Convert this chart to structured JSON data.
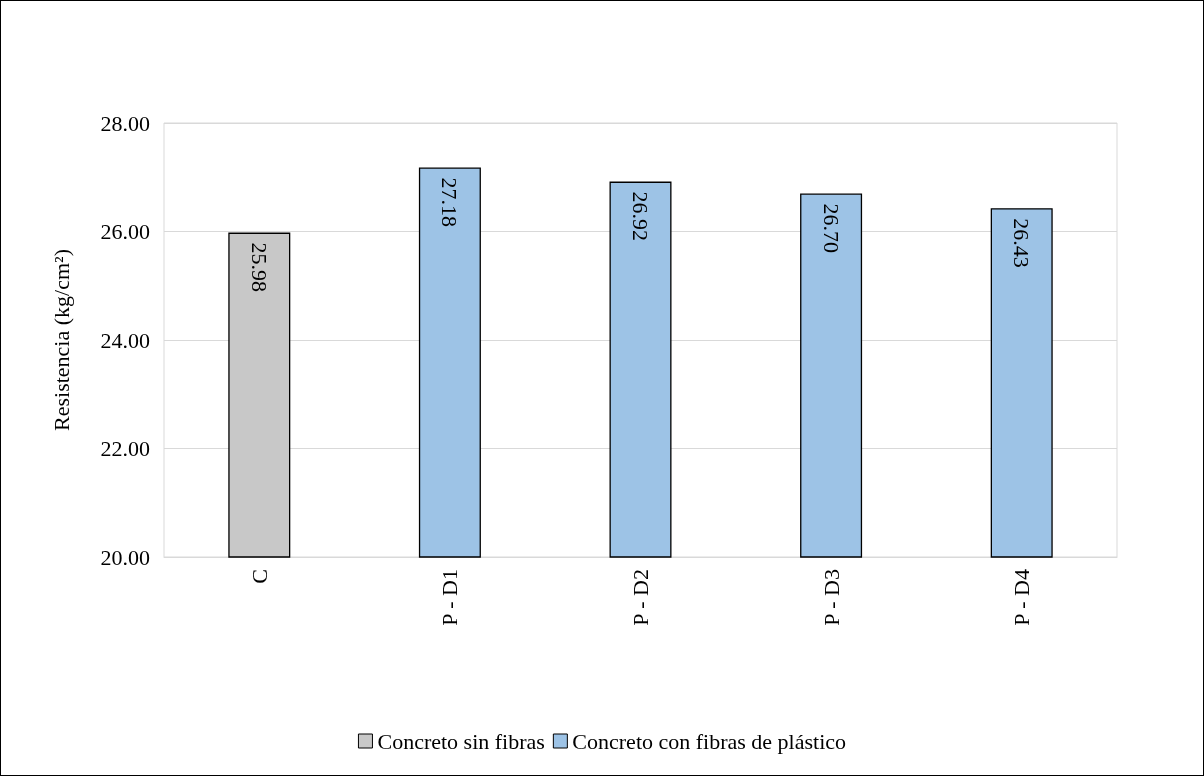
{
  "chart_data": {
    "type": "bar",
    "ylabel": "Resistencia (kg/cm²)",
    "categories": [
      "C",
      "P - D1",
      "P - D2",
      "P - D3",
      "P - D4"
    ],
    "series": [
      {
        "name": "Concreto sin fibras",
        "color": "#c8c8c8",
        "values": [
          25.98,
          null,
          null,
          null,
          null
        ],
        "value_labels": [
          "25.98",
          null,
          null,
          null,
          null
        ]
      },
      {
        "name": "Concreto con fibras de plástico",
        "color": "#9dc3e6",
        "values": [
          null,
          27.18,
          26.92,
          26.7,
          26.43
        ],
        "value_labels": [
          null,
          "27.18",
          "26.92",
          "26.70",
          "26.43"
        ]
      }
    ],
    "ylim": [
      20,
      28
    ],
    "yticks": [
      {
        "value": 20,
        "label": "20.00"
      },
      {
        "value": 22,
        "label": "22.00"
      },
      {
        "value": 24,
        "label": "24.00"
      },
      {
        "value": 26,
        "label": "26.00"
      },
      {
        "value": 28,
        "label": "28.00"
      }
    ],
    "grid": "y",
    "legend": "bottom"
  }
}
